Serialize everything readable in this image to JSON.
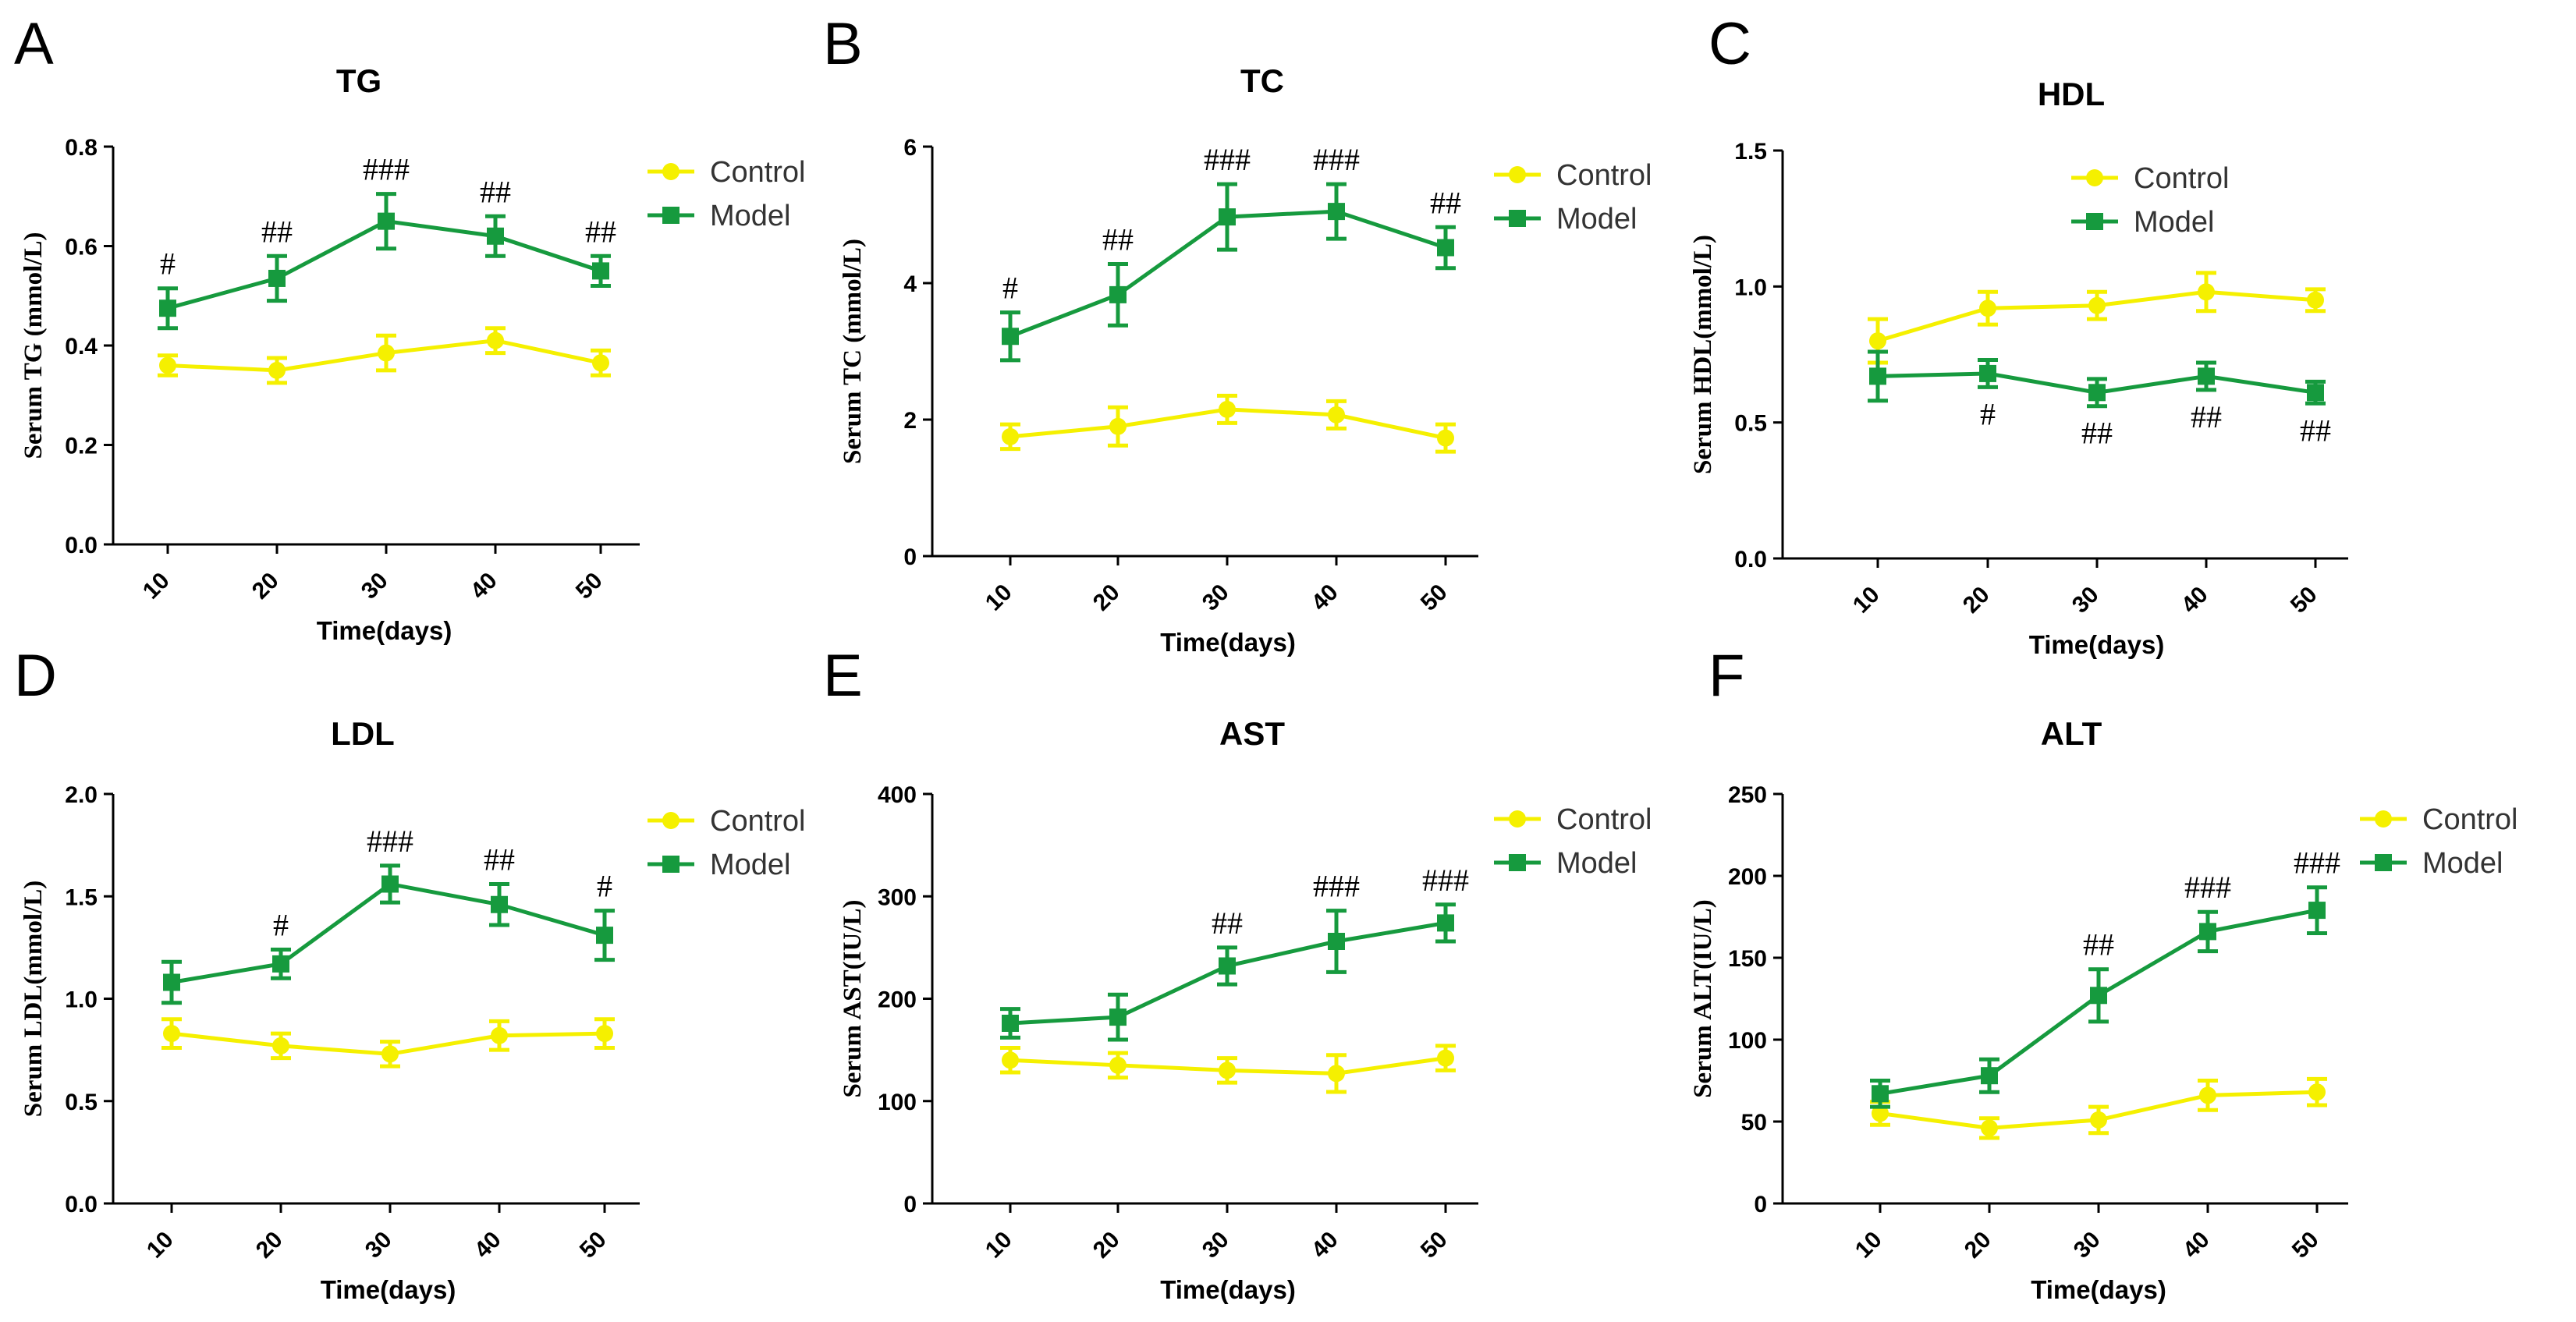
{
  "figure": {
    "colors": {
      "control": "#f5f000",
      "model": "#169a3e",
      "axis": "#000000"
    }
  },
  "chart_data": [
    {
      "panel": "A",
      "type": "line",
      "title": "TG",
      "xlabel": "Time(days)",
      "ylabel": "Serum TG (mmol/L)",
      "categories": [
        "10",
        "20",
        "30",
        "40",
        "50"
      ],
      "ylim": [
        0,
        0.8
      ],
      "yticks": [
        0,
        0.2,
        0.4,
        0.6,
        0.8
      ],
      "ytick_labels": [
        "0.0",
        "0.2",
        "0.4",
        "0.6",
        "0.8"
      ],
      "legend": "top-right",
      "series": [
        {
          "name": "Control",
          "values": [
            0.36,
            0.35,
            0.385,
            0.41,
            0.365
          ],
          "errors": [
            0.02,
            0.025,
            0.035,
            0.025,
            0.025
          ]
        },
        {
          "name": "Model",
          "values": [
            0.475,
            0.535,
            0.65,
            0.62,
            0.55
          ],
          "errors": [
            0.04,
            0.045,
            0.055,
            0.04,
            0.03
          ]
        }
      ],
      "annotations": [
        "#",
        "##",
        "###",
        "##",
        "##"
      ],
      "annotation_position": "above"
    },
    {
      "panel": "B",
      "type": "line",
      "title": "TC",
      "xlabel": "Time(days)",
      "ylabel": "Serum TC (mmol/L)",
      "categories": [
        "10",
        "20",
        "30",
        "40",
        "50"
      ],
      "ylim": [
        0,
        6
      ],
      "yticks": [
        0,
        2,
        4,
        6
      ],
      "ytick_labels": [
        "0",
        "2",
        "4",
        "6"
      ],
      "legend": "top-right",
      "series": [
        {
          "name": "Control",
          "values": [
            1.75,
            1.9,
            2.15,
            2.07,
            1.73
          ],
          "errors": [
            0.18,
            0.28,
            0.2,
            0.2,
            0.2
          ]
        },
        {
          "name": "Model",
          "values": [
            3.22,
            3.83,
            4.97,
            5.05,
            4.52
          ],
          "errors": [
            0.35,
            0.45,
            0.48,
            0.4,
            0.3
          ]
        }
      ],
      "annotations": [
        "#",
        "##",
        "###",
        "###",
        "##"
      ],
      "annotation_position": "above"
    },
    {
      "panel": "C",
      "type": "line",
      "title": "HDL",
      "xlabel": "Time(days)",
      "ylabel": "Serum HDL(mmol/L)",
      "categories": [
        "10",
        "20",
        "30",
        "40",
        "50"
      ],
      "ylim": [
        0,
        1.5
      ],
      "yticks": [
        0,
        0.5,
        1.0,
        1.5
      ],
      "ytick_labels": [
        "0.0",
        "0.5",
        "1.0",
        "1.5"
      ],
      "legend": "top-right",
      "series": [
        {
          "name": "Control",
          "values": [
            0.8,
            0.92,
            0.93,
            0.98,
            0.95
          ],
          "errors": [
            0.08,
            0.06,
            0.05,
            0.07,
            0.04
          ]
        },
        {
          "name": "Model",
          "values": [
            0.67,
            0.68,
            0.61,
            0.67,
            0.61
          ],
          "errors": [
            0.09,
            0.05,
            0.05,
            0.05,
            0.04
          ]
        }
      ],
      "annotations": [
        "",
        "#",
        "##",
        "##",
        "##"
      ],
      "annotation_position": "below"
    },
    {
      "panel": "D",
      "type": "line",
      "title": "LDL",
      "xlabel": "Time(days)",
      "ylabel": "Serum LDL(mmol/L)",
      "categories": [
        "10",
        "20",
        "30",
        "40",
        "50"
      ],
      "ylim": [
        0,
        2.0
      ],
      "yticks": [
        0,
        0.5,
        1.0,
        1.5,
        2.0
      ],
      "ytick_labels": [
        "0.0",
        "0.5",
        "1.0",
        "1.5",
        "2.0"
      ],
      "legend": "top-right",
      "series": [
        {
          "name": "Control",
          "values": [
            0.83,
            0.77,
            0.73,
            0.82,
            0.83
          ],
          "errors": [
            0.07,
            0.06,
            0.06,
            0.07,
            0.07
          ]
        },
        {
          "name": "Model",
          "values": [
            1.08,
            1.17,
            1.56,
            1.46,
            1.31
          ],
          "errors": [
            0.1,
            0.07,
            0.09,
            0.1,
            0.12
          ]
        }
      ],
      "annotations": [
        "",
        "#",
        "###",
        "##",
        "#"
      ],
      "annotation_position": "above"
    },
    {
      "panel": "E",
      "type": "line",
      "title": "AST",
      "xlabel": "Time(days)",
      "ylabel": "Serum AST(IU/L)",
      "categories": [
        "10",
        "20",
        "30",
        "40",
        "50"
      ],
      "ylim": [
        0,
        400
      ],
      "yticks": [
        0,
        100,
        200,
        300,
        400
      ],
      "ytick_labels": [
        "0",
        "100",
        "200",
        "300",
        "400"
      ],
      "legend": "top-right",
      "series": [
        {
          "name": "Control",
          "values": [
            140,
            135,
            130,
            127,
            142
          ],
          "errors": [
            12,
            12,
            12,
            18,
            12
          ]
        },
        {
          "name": "Model",
          "values": [
            176,
            182,
            232,
            256,
            274
          ],
          "errors": [
            14,
            22,
            18,
            30,
            18
          ]
        }
      ],
      "annotations": [
        "",
        "",
        "##",
        "###",
        "###"
      ],
      "annotation_position": "above"
    },
    {
      "panel": "F",
      "type": "line",
      "title": "ALT",
      "xlabel": "Time(days)",
      "ylabel": "Serum ALT(IU/L)",
      "categories": [
        "10",
        "20",
        "30",
        "40",
        "50"
      ],
      "ylim": [
        0,
        250
      ],
      "yticks": [
        0,
        50,
        100,
        150,
        200,
        250
      ],
      "ytick_labels": [
        "0",
        "50",
        "100",
        "150",
        "200",
        "250"
      ],
      "legend": "top-right",
      "series": [
        {
          "name": "Control",
          "values": [
            55,
            46,
            51,
            66,
            68
          ],
          "errors": [
            7,
            6,
            8,
            9,
            8
          ]
        },
        {
          "name": "Model",
          "values": [
            67,
            78,
            127,
            166,
            179
          ],
          "errors": [
            8,
            10,
            16,
            12,
            14
          ]
        }
      ],
      "annotations": [
        "",
        "",
        "##",
        "###",
        "###"
      ],
      "annotation_position": "above"
    }
  ]
}
